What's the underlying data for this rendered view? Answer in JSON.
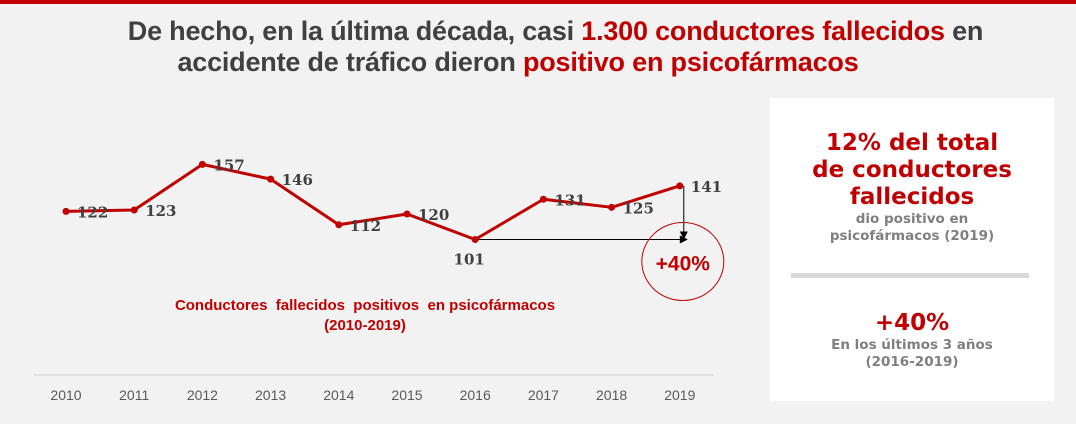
{
  "title": {
    "line1_prefix": "De hecho, en la última década, casi ",
    "line1_highlight": "1.300 conductores fallecidos",
    "line1_suffix": " en",
    "line2_prefix": "accidente de tráfico dieron ",
    "line2_highlight": "positivo en psicofármacos"
  },
  "colors": {
    "accent": "#c00000",
    "text": "#404040",
    "muted": "#7f7f7f",
    "background": "#f2f2f2"
  },
  "chart_data": {
    "type": "line",
    "title": "Conductores  fallecidos  positivos  en psicofármacos",
    "subtitle": "(2010-2019)",
    "categories": [
      "2010",
      "2011",
      "2012",
      "2013",
      "2014",
      "2015",
      "2016",
      "2017",
      "2018",
      "2019"
    ],
    "series": [
      {
        "values": [
          122,
          123,
          157,
          146,
          112,
          120,
          101,
          131,
          125,
          141
        ]
      }
    ],
    "data_labels": [
      "122",
      "123",
      "157",
      "146",
      "112",
      "120",
      "101",
      "131",
      "125",
      "141"
    ],
    "ylim": [
      0,
      205
    ],
    "grid": false,
    "annotation": {
      "label": "+40%",
      "from": "2016",
      "to": "2019"
    }
  },
  "panel": {
    "stat1": "12% del total de conductores fallecidos",
    "stat1_line1": "12% del total",
    "stat1_line2": "de conductores",
    "stat1_line3": "fallecidos",
    "stat1_sub1": "dio positivo en",
    "stat1_sub2": "psicofármacos (2019)",
    "stat2": "+40%",
    "stat2_sub1": "En los últimos 3 años",
    "stat2_sub2": "(2016-2019)"
  }
}
